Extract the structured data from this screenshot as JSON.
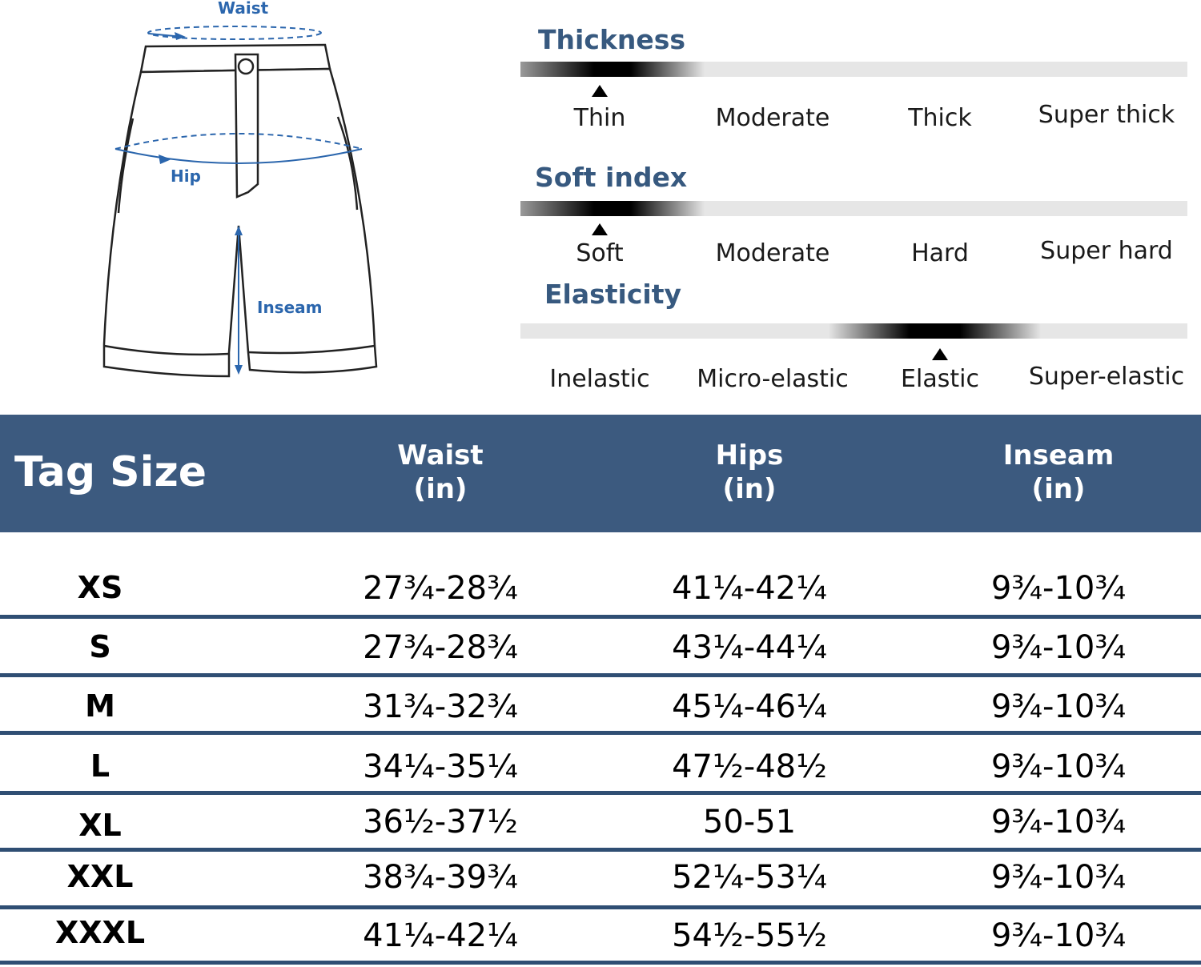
{
  "diagram": {
    "labels": {
      "waist": "Waist",
      "hip": "Hip",
      "inseam": "Inseam"
    }
  },
  "scales": [
    {
      "title": "Thickness",
      "options": [
        "Thin",
        "Moderate",
        "Thick",
        "Super thick"
      ],
      "selected_index": 0
    },
    {
      "title": "Soft index",
      "options": [
        "Soft",
        "Moderate",
        "Hard",
        "Super hard"
      ],
      "selected_index": 0
    },
    {
      "title": "Elasticity",
      "options": [
        "Inelastic",
        "Micro-elastic",
        "Elastic",
        "Super-elastic"
      ],
      "selected_index": 2
    }
  ],
  "table": {
    "headers": {
      "tag_size": "Tag Size",
      "waist": [
        "Waist",
        "(in)"
      ],
      "hips": [
        "Hips",
        "(in)"
      ],
      "inseam": [
        "Inseam",
        "(in)"
      ]
    },
    "rows": [
      {
        "size": "XS",
        "waist": "27¾-28¾",
        "hips": "41¼-42¼",
        "inseam": "9¾-10¾"
      },
      {
        "size": "S",
        "waist": "27¾-28¾",
        "hips": "43¼-44¼",
        "inseam": "9¾-10¾"
      },
      {
        "size": "M",
        "waist": "31¾-32¾",
        "hips": "45¼-46¼",
        "inseam": "9¾-10¾"
      },
      {
        "size": "L",
        "waist": "34¼-35¼",
        "hips": "47½-48½",
        "inseam": "9¾-10¾"
      },
      {
        "size": "XL",
        "waist": "36½-37½",
        "hips": "50-51",
        "inseam": "9¾-10¾"
      },
      {
        "size": "XXL",
        "waist": "38¾-39¾",
        "hips": "52¼-53¼",
        "inseam": "9¾-10¾"
      },
      {
        "size": "XXXL",
        "waist": "41¼-42¼",
        "hips": "54½-55½",
        "inseam": "9¾-10¾"
      }
    ]
  },
  "colors": {
    "header_bg": "#3c5a7f",
    "title_blue": "#37597f",
    "diagram_blue": "#2b66ad",
    "separator": "#2f4e73"
  }
}
